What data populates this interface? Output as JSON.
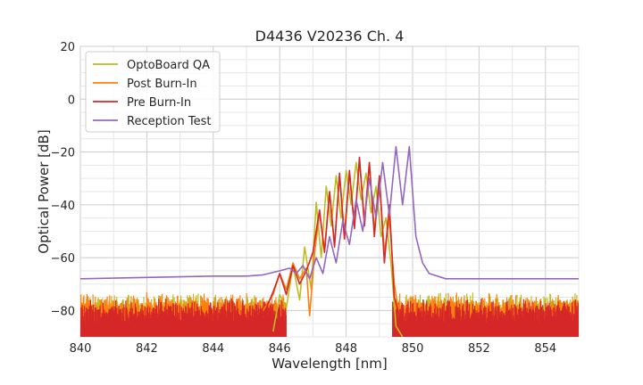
{
  "chart_data": {
    "type": "line",
    "title": "D4436 V20236 Ch. 4",
    "xlabel": "Wavelength [nm]",
    "ylabel": "Optical Power [dB]",
    "xlim": [
      840,
      855
    ],
    "ylim": [
      -90,
      20
    ],
    "xticks": [
      "840",
      "842",
      "844",
      "846",
      "848",
      "850",
      "852",
      "854"
    ],
    "yticks": [
      "20",
      "0",
      "−20",
      "−40",
      "−60",
      "−80"
    ],
    "grid": true,
    "legend_position": "top-left",
    "series": [
      {
        "name": "OptoBoard QA",
        "color": "#bcbd22",
        "x": [
          845.8,
          846.0,
          846.2,
          846.4,
          846.6,
          846.75,
          846.95,
          847.1,
          847.25,
          847.4,
          847.55,
          847.7,
          847.85,
          848.0,
          848.15,
          848.3,
          848.45,
          848.6,
          848.75,
          848.9,
          849.05,
          849.2,
          849.35,
          849.5,
          849.7
        ],
        "y": [
          -88,
          -74,
          -79,
          -63,
          -76,
          -56,
          -72,
          -39,
          -60,
          -33,
          -48,
          -29,
          -45,
          -27,
          -40,
          -24,
          -38,
          -28,
          -43,
          -33,
          -52,
          -45,
          -62,
          -86,
          -90
        ]
      },
      {
        "name": "Post Burn-In",
        "color": "#ff7f0e",
        "x": [
          845.5,
          845.8,
          846.0,
          846.2,
          846.4,
          846.6,
          846.8,
          846.9,
          847.05,
          847.2,
          847.35,
          847.5,
          847.65,
          847.8,
          847.95,
          848.1,
          848.25,
          848.4,
          848.55,
          848.7,
          848.85,
          849.0,
          849.15,
          849.3,
          849.45,
          849.6
        ],
        "y": [
          -80,
          -74,
          -66,
          -72,
          -62,
          -68,
          -64,
          -82,
          -58,
          -43,
          -57,
          -35,
          -55,
          -29,
          -51,
          -28,
          -48,
          -23,
          -46,
          -24,
          -50,
          -30,
          -58,
          -45,
          -70,
          -82
        ]
      },
      {
        "name": "Pre Burn-In",
        "color": "#d62728",
        "x": [
          845.5,
          845.8,
          846.0,
          846.2,
          846.4,
          846.6,
          846.8,
          847.0,
          847.2,
          847.35,
          847.5,
          847.65,
          847.8,
          847.95,
          848.1,
          848.25,
          848.4,
          848.55,
          848.7,
          848.85,
          849.0,
          849.15,
          849.3,
          849.45,
          849.65
        ],
        "y": [
          -82,
          -73,
          -66,
          -74,
          -63,
          -70,
          -65,
          -58,
          -42,
          -58,
          -35,
          -56,
          -28,
          -53,
          -27,
          -49,
          -22,
          -48,
          -24,
          -52,
          -29,
          -62,
          -40,
          -75,
          -84
        ]
      },
      {
        "name": "Reception Test",
        "color": "#9467bd",
        "x": [
          840.0,
          842.0,
          844.0,
          845.0,
          845.5,
          846.0,
          846.3,
          846.5,
          846.7,
          846.9,
          847.1,
          847.3,
          847.5,
          847.7,
          847.9,
          848.1,
          848.3,
          848.5,
          848.7,
          848.9,
          849.1,
          849.3,
          849.5,
          849.7,
          849.9,
          850.1,
          850.3,
          850.5,
          851.0,
          852.0,
          853.0,
          854.0,
          855.0
        ],
        "y": [
          -68,
          -67.5,
          -67,
          -67,
          -66.5,
          -65,
          -64,
          -66,
          -63,
          -68,
          -60,
          -66,
          -52,
          -62,
          -46,
          -55,
          -38,
          -50,
          -30,
          -45,
          -24,
          -44,
          -18,
          -40,
          -18,
          -52,
          -62,
          -66,
          -68,
          -68,
          -68,
          -68,
          -68
        ]
      }
    ],
    "noise_floor_range": [
      -90,
      -73
    ]
  }
}
